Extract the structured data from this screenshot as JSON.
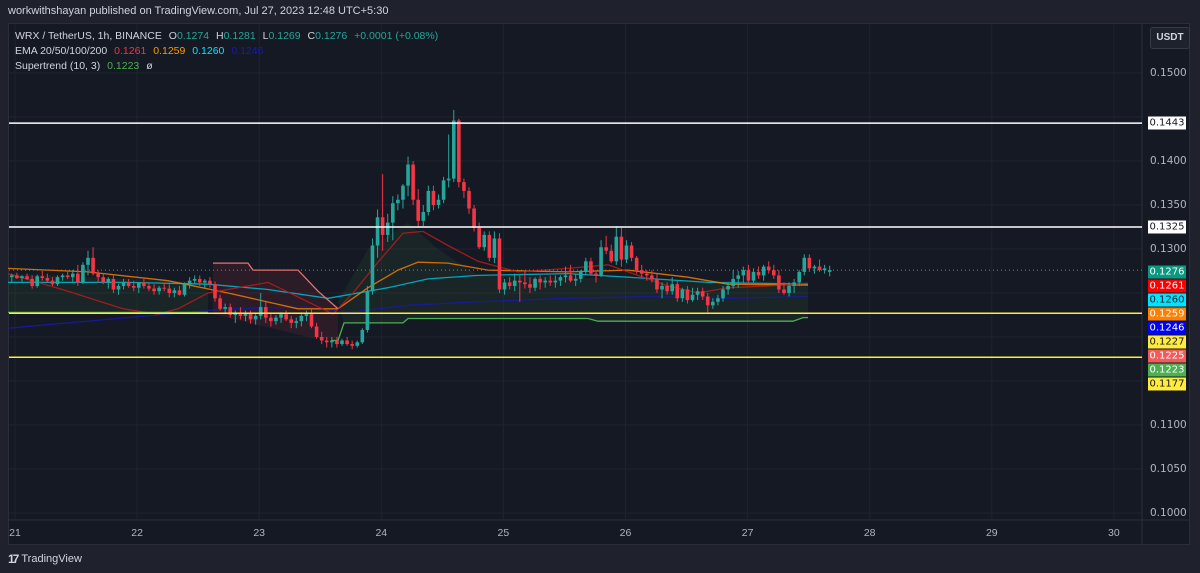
{
  "header": {
    "publisher_text": "workwithshayan published on TradingView.com, Jul 27, 2023 12:48 UTC+5:30"
  },
  "legend": {
    "symbol_line": {
      "symbol": "WRX / TetherUS, 1h, BINANCE",
      "o_label": "O",
      "o": "0.1274",
      "h_label": "H",
      "h": "0.1281",
      "l_label": "L",
      "l": "0.1269",
      "c_label": "C",
      "c": "0.1276",
      "change": "+0.0001 (+0.08%)"
    },
    "ema_line": {
      "label": "EMA 20/50/100/200",
      "v20": "0.1261",
      "v50": "0.1259",
      "v100": "0.1260",
      "v200": "0.1246"
    },
    "supertrend_line": {
      "label": "Supertrend (10, 3)",
      "value": "0.1223",
      "suffix": "ø"
    }
  },
  "currency_button": "USDT",
  "footer": {
    "brand": "TradingView",
    "mark": "17"
  },
  "colors": {
    "up": "#26a69a",
    "down": "#f23645",
    "ema20": "#b71c1c",
    "ema50": "#f57c00",
    "ema100": "#00bcd4",
    "ema200": "#1a1aa6",
    "supertrend": "#4caf50",
    "supertrend_down": "#e57373",
    "white_level": "#ffffff",
    "yellow_level": "#ffeb3b"
  },
  "chart_data": {
    "type": "candlestick",
    "title": "WRX / TetherUS, 1h, BINANCE",
    "xlabel": "",
    "ylabel": "USDT",
    "ylim": [
      0.0975,
      0.1525
    ],
    "x_ticks": [
      "21",
      "22",
      "23",
      "24",
      "25",
      "26",
      "27",
      "28",
      "29",
      "30"
    ],
    "y_ticks": [
      "0.1500",
      "0.1400",
      "0.1350",
      "0.1300",
      "0.1100",
      "0.1050",
      "0.1000"
    ],
    "horizontal_levels": [
      {
        "price": 0.1443,
        "label": "0.1443",
        "color": "#ffffff"
      },
      {
        "price": 0.1325,
        "label": "0.1325",
        "color": "#ffffff"
      },
      {
        "price": 0.1227,
        "label": "0.1227",
        "color": "#ffeb3b"
      },
      {
        "price": 0.1177,
        "label": "0.1177",
        "color": "#ffeb3b"
      }
    ],
    "price_tags": [
      {
        "label": "0.1276",
        "price": 0.1276,
        "bg": "#089981",
        "fg": "#ffffff"
      },
      {
        "label": "0.1261",
        "price": 0.1261,
        "bg": "#ff0000",
        "fg": "#ffffff"
      },
      {
        "label": "0.1260",
        "price": 0.126,
        "bg": "#00e5ff",
        "fg": "#131722"
      },
      {
        "label": "0.1259",
        "price": 0.1259,
        "bg": "#ff7f00",
        "fg": "#ffffff"
      },
      {
        "label": "0.1246",
        "price": 0.1246,
        "bg": "#0000ff",
        "fg": "#ffffff"
      },
      {
        "label": "0.1227",
        "price": 0.1227,
        "bg": "#ffeb3b",
        "fg": "#131722"
      },
      {
        "label": "0.1225",
        "price": 0.1225,
        "bg": "#f55a5a",
        "fg": "#ffffff"
      },
      {
        "label": "0.1223",
        "price": 0.1223,
        "bg": "#4caf50",
        "fg": "#ffffff"
      },
      {
        "label": "0.1177",
        "price": 0.1177,
        "bg": "#ffeb3b",
        "fg": "#131722"
      }
    ],
    "last_price": 0.1276,
    "candles_ohlc": [
      [
        0.1268,
        0.1272,
        0.1262,
        0.127
      ],
      [
        0.127,
        0.1273,
        0.1266,
        0.1267
      ],
      [
        0.1267,
        0.127,
        0.1263,
        0.1269
      ],
      [
        0.1269,
        0.1272,
        0.1265,
        0.1266
      ],
      [
        0.1266,
        0.127,
        0.1255,
        0.1258
      ],
      [
        0.1258,
        0.1271,
        0.1256,
        0.1269
      ],
      [
        0.1269,
        0.1275,
        0.1264,
        0.1267
      ],
      [
        0.1267,
        0.1272,
        0.1262,
        0.1264
      ],
      [
        0.1264,
        0.1268,
        0.1258,
        0.126
      ],
      [
        0.126,
        0.127,
        0.1258,
        0.1268
      ],
      [
        0.1268,
        0.1272,
        0.1264,
        0.127
      ],
      [
        0.127,
        0.1275,
        0.1266,
        0.1268
      ],
      [
        0.1268,
        0.1276,
        0.1262,
        0.1272
      ],
      [
        0.1272,
        0.1282,
        0.1258,
        0.1262
      ],
      [
        0.1262,
        0.1285,
        0.126,
        0.1282
      ],
      [
        0.1282,
        0.1298,
        0.127,
        0.129
      ],
      [
        0.129,
        0.1302,
        0.127,
        0.1272
      ],
      [
        0.1272,
        0.1276,
        0.1262,
        0.1268
      ],
      [
        0.1268,
        0.1272,
        0.126,
        0.1262
      ],
      [
        0.1262,
        0.1268,
        0.1255,
        0.1266
      ],
      [
        0.1266,
        0.127,
        0.125,
        0.1254
      ],
      [
        0.1254,
        0.126,
        0.1248,
        0.1258
      ],
      [
        0.1258,
        0.1266,
        0.1254,
        0.1262
      ],
      [
        0.1262,
        0.1266,
        0.1256,
        0.1258
      ],
      [
        0.1258,
        0.1264,
        0.1252,
        0.1256
      ],
      [
        0.1256,
        0.1262,
        0.125,
        0.1262
      ],
      [
        0.1262,
        0.1266,
        0.1255,
        0.1258
      ],
      [
        0.1258,
        0.1262,
        0.1252,
        0.1255
      ],
      [
        0.1255,
        0.126,
        0.1248,
        0.1252
      ],
      [
        0.1252,
        0.1258,
        0.1248,
        0.1256
      ],
      [
        0.1256,
        0.1262,
        0.1252,
        0.1255
      ],
      [
        0.1255,
        0.126,
        0.1245,
        0.125
      ],
      [
        0.125,
        0.1256,
        0.1245,
        0.1253
      ],
      [
        0.1253,
        0.1258,
        0.1247,
        0.1248
      ],
      [
        0.1248,
        0.1262,
        0.1246,
        0.126
      ],
      [
        0.126,
        0.1268,
        0.1255,
        0.1264
      ],
      [
        0.1264,
        0.127,
        0.126,
        0.1266
      ],
      [
        0.1266,
        0.127,
        0.1258,
        0.1262
      ],
      [
        0.1262,
        0.1266,
        0.1256,
        0.1264
      ],
      [
        0.1264,
        0.1268,
        0.1256,
        0.126
      ],
      [
        0.126,
        0.1263,
        0.124,
        0.1244
      ],
      [
        0.1244,
        0.1248,
        0.123,
        0.1232
      ],
      [
        0.1232,
        0.1238,
        0.1226,
        0.1234
      ],
      [
        0.1234,
        0.1238,
        0.1222,
        0.1225
      ],
      [
        0.1225,
        0.123,
        0.1216,
        0.1228
      ],
      [
        0.1228,
        0.1234,
        0.122,
        0.1224
      ],
      [
        0.1224,
        0.123,
        0.1218,
        0.1227
      ],
      [
        0.1227,
        0.123,
        0.1215,
        0.122
      ],
      [
        0.122,
        0.1226,
        0.1214,
        0.1224
      ],
      [
        0.1224,
        0.125,
        0.122,
        0.1234
      ],
      [
        0.1234,
        0.124,
        0.1216,
        0.1222
      ],
      [
        0.1222,
        0.1226,
        0.1212,
        0.1218
      ],
      [
        0.1218,
        0.1225,
        0.1214,
        0.1222
      ],
      [
        0.1222,
        0.1228,
        0.1216,
        0.1226
      ],
      [
        0.1226,
        0.123,
        0.1218,
        0.122
      ],
      [
        0.122,
        0.1224,
        0.121,
        0.1216
      ],
      [
        0.1216,
        0.1222,
        0.121,
        0.1218
      ],
      [
        0.1218,
        0.1228,
        0.1212,
        0.1224
      ],
      [
        0.1224,
        0.123,
        0.1218,
        0.1226
      ],
      [
        0.1226,
        0.1232,
        0.121,
        0.1212
      ],
      [
        0.1212,
        0.1216,
        0.1198,
        0.12
      ],
      [
        0.12,
        0.1206,
        0.1192,
        0.1196
      ],
      [
        0.1196,
        0.12,
        0.1188,
        0.1194
      ],
      [
        0.1194,
        0.12,
        0.1188,
        0.1196
      ],
      [
        0.1196,
        0.12,
        0.1188,
        0.1192
      ],
      [
        0.1192,
        0.1198,
        0.119,
        0.1196
      ],
      [
        0.1196,
        0.12,
        0.119,
        0.1192
      ],
      [
        0.1192,
        0.1196,
        0.1186,
        0.119
      ],
      [
        0.119,
        0.1196,
        0.1188,
        0.1194
      ],
      [
        0.1194,
        0.121,
        0.1192,
        0.1208
      ],
      [
        0.1208,
        0.1258,
        0.1205,
        0.1252
      ],
      [
        0.1252,
        0.1312,
        0.1248,
        0.1304
      ],
      [
        0.1304,
        0.1345,
        0.129,
        0.1336
      ],
      [
        0.1336,
        0.1385,
        0.1298,
        0.1316
      ],
      [
        0.1316,
        0.134,
        0.1308,
        0.133
      ],
      [
        0.133,
        0.136,
        0.131,
        0.1352
      ],
      [
        0.1352,
        0.1362,
        0.1344,
        0.1356
      ],
      [
        0.1356,
        0.1374,
        0.1346,
        0.1372
      ],
      [
        0.1372,
        0.1405,
        0.136,
        0.1396
      ],
      [
        0.1396,
        0.14,
        0.135,
        0.1356
      ],
      [
        0.1356,
        0.1368,
        0.1324,
        0.1332
      ],
      [
        0.1332,
        0.135,
        0.1326,
        0.1342
      ],
      [
        0.1342,
        0.1372,
        0.1338,
        0.1366
      ],
      [
        0.1366,
        0.1372,
        0.1344,
        0.135
      ],
      [
        0.135,
        0.1362,
        0.1346,
        0.1356
      ],
      [
        0.1356,
        0.1382,
        0.1352,
        0.1378
      ],
      [
        0.1378,
        0.143,
        0.137,
        0.138
      ],
      [
        0.138,
        0.1458,
        0.1376,
        0.1446
      ],
      [
        0.1446,
        0.1448,
        0.137,
        0.1376
      ],
      [
        0.1376,
        0.138,
        0.1358,
        0.1366
      ],
      [
        0.1366,
        0.137,
        0.134,
        0.1346
      ],
      [
        0.1346,
        0.135,
        0.132,
        0.1324
      ],
      [
        0.1324,
        0.133,
        0.13,
        0.1302
      ],
      [
        0.1302,
        0.132,
        0.1298,
        0.1316
      ],
      [
        0.1316,
        0.132,
        0.1286,
        0.129
      ],
      [
        0.129,
        0.132,
        0.1284,
        0.1312
      ],
      [
        0.1312,
        0.1318,
        0.125,
        0.1254
      ],
      [
        0.1254,
        0.1266,
        0.1248,
        0.1262
      ],
      [
        0.1262,
        0.1268,
        0.1254,
        0.1258
      ],
      [
        0.1258,
        0.1272,
        0.1252,
        0.1264
      ],
      [
        0.1264,
        0.127,
        0.124,
        0.1262
      ],
      [
        0.1262,
        0.1275,
        0.1255,
        0.126
      ],
      [
        0.126,
        0.1268,
        0.125,
        0.1256
      ],
      [
        0.1256,
        0.1268,
        0.1252,
        0.1266
      ],
      [
        0.1266,
        0.127,
        0.1254,
        0.1262
      ],
      [
        0.1262,
        0.1268,
        0.1256,
        0.1264
      ],
      [
        0.1264,
        0.127,
        0.1258,
        0.1262
      ],
      [
        0.1262,
        0.127,
        0.1256,
        0.1264
      ],
      [
        0.1264,
        0.127,
        0.1258,
        0.1268
      ],
      [
        0.1268,
        0.128,
        0.1262,
        0.127
      ],
      [
        0.127,
        0.1282,
        0.1262,
        0.1264
      ],
      [
        0.1264,
        0.1272,
        0.1258,
        0.1266
      ],
      [
        0.1266,
        0.1276,
        0.1262,
        0.1274
      ],
      [
        0.1274,
        0.129,
        0.127,
        0.1286
      ],
      [
        0.1286,
        0.129,
        0.127,
        0.1272
      ],
      [
        0.1272,
        0.1276,
        0.1262,
        0.127
      ],
      [
        0.127,
        0.131,
        0.1268,
        0.1302
      ],
      [
        0.1302,
        0.1315,
        0.1294,
        0.1298
      ],
      [
        0.1298,
        0.1305,
        0.1284,
        0.1286
      ],
      [
        0.1286,
        0.1326,
        0.1282,
        0.1314
      ],
      [
        0.1314,
        0.1324,
        0.128,
        0.1288
      ],
      [
        0.1288,
        0.131,
        0.1284,
        0.1304
      ],
      [
        0.1304,
        0.1308,
        0.1286,
        0.129
      ],
      [
        0.129,
        0.1292,
        0.1272,
        0.1276
      ],
      [
        0.1276,
        0.1282,
        0.1268,
        0.1272
      ],
      [
        0.1272,
        0.1276,
        0.1264,
        0.127
      ],
      [
        0.127,
        0.1276,
        0.1262,
        0.1266
      ],
      [
        0.1266,
        0.1272,
        0.125,
        0.1254
      ],
      [
        0.1254,
        0.1262,
        0.1244,
        0.1258
      ],
      [
        0.1258,
        0.1262,
        0.1248,
        0.1252
      ],
      [
        0.1252,
        0.1268,
        0.1248,
        0.126
      ],
      [
        0.126,
        0.1264,
        0.124,
        0.1244
      ],
      [
        0.1244,
        0.1256,
        0.124,
        0.1254
      ],
      [
        0.1254,
        0.1258,
        0.1238,
        0.1242
      ],
      [
        0.1242,
        0.1256,
        0.124,
        0.1248
      ],
      [
        0.1248,
        0.1256,
        0.1242,
        0.1252
      ],
      [
        0.1252,
        0.1256,
        0.1242,
        0.1246
      ],
      [
        0.1246,
        0.125,
        0.1228,
        0.1236
      ],
      [
        0.1236,
        0.1244,
        0.1232,
        0.124
      ],
      [
        0.124,
        0.1248,
        0.1236,
        0.1244
      ],
      [
        0.1244,
        0.1258,
        0.124,
        0.1254
      ],
      [
        0.1254,
        0.1262,
        0.1248,
        0.1258
      ],
      [
        0.1258,
        0.1276,
        0.1255,
        0.1266
      ],
      [
        0.1266,
        0.1275,
        0.1256,
        0.127
      ],
      [
        0.127,
        0.128,
        0.1262,
        0.1276
      ],
      [
        0.1276,
        0.1282,
        0.1262,
        0.1264
      ],
      [
        0.1264,
        0.1278,
        0.1262,
        0.1274
      ],
      [
        0.1274,
        0.128,
        0.1266,
        0.127
      ],
      [
        0.127,
        0.1282,
        0.1264,
        0.128
      ],
      [
        0.128,
        0.1286,
        0.1272,
        0.1276
      ],
      [
        0.1276,
        0.1282,
        0.1266,
        0.127
      ],
      [
        0.127,
        0.1276,
        0.125,
        0.1254
      ],
      [
        0.1254,
        0.1262,
        0.1248,
        0.125
      ],
      [
        0.125,
        0.1262,
        0.1246,
        0.1258
      ],
      [
        0.1258,
        0.1266,
        0.125,
        0.1262
      ],
      [
        0.1262,
        0.1276,
        0.1258,
        0.1274
      ],
      [
        0.1274,
        0.1294,
        0.127,
        0.129
      ],
      [
        0.129,
        0.1294,
        0.1274,
        0.1278
      ],
      [
        0.1278,
        0.1282,
        0.1272,
        0.128
      ],
      [
        0.128,
        0.1288,
        0.1274,
        0.1276
      ],
      [
        0.1276,
        0.1282,
        0.1272,
        0.1278
      ],
      [
        0.1274,
        0.1281,
        0.1269,
        0.1276
      ]
    ],
    "ema20": [
      [
        0,
        0.1272
      ],
      [
        60,
        0.1252
      ],
      [
        115,
        0.1232
      ],
      [
        150,
        0.1226
      ],
      [
        170,
        0.1232
      ],
      [
        200,
        0.125
      ],
      [
        260,
        0.1262
      ],
      [
        300,
        0.124
      ],
      [
        325,
        0.1226
      ],
      [
        345,
        0.125
      ],
      [
        370,
        0.1285
      ],
      [
        395,
        0.1318
      ],
      [
        415,
        0.132
      ],
      [
        440,
        0.1304
      ],
      [
        470,
        0.1286
      ],
      [
        510,
        0.1274
      ],
      [
        560,
        0.1278
      ],
      [
        600,
        0.1282
      ],
      [
        630,
        0.127
      ],
      [
        660,
        0.1258
      ],
      [
        690,
        0.125
      ],
      [
        720,
        0.1256
      ],
      [
        760,
        0.1258
      ],
      [
        800,
        0.1261
      ]
    ],
    "ema50": [
      [
        0,
        0.1278
      ],
      [
        80,
        0.1274
      ],
      [
        160,
        0.1264
      ],
      [
        220,
        0.125
      ],
      [
        290,
        0.1232
      ],
      [
        330,
        0.1232
      ],
      [
        360,
        0.1256
      ],
      [
        390,
        0.1276
      ],
      [
        410,
        0.1285
      ],
      [
        440,
        0.1284
      ],
      [
        480,
        0.1276
      ],
      [
        560,
        0.1274
      ],
      [
        620,
        0.1276
      ],
      [
        680,
        0.1268
      ],
      [
        720,
        0.126
      ],
      [
        800,
        0.1259
      ]
    ],
    "ema100": [
      [
        0,
        0.1262
      ],
      [
        120,
        0.1262
      ],
      [
        200,
        0.126
      ],
      [
        260,
        0.1254
      ],
      [
        320,
        0.1244
      ],
      [
        340,
        0.1248
      ],
      [
        380,
        0.1256
      ],
      [
        420,
        0.1266
      ],
      [
        470,
        0.127
      ],
      [
        560,
        0.1272
      ],
      [
        620,
        0.1268
      ],
      [
        700,
        0.1262
      ],
      [
        800,
        0.126
      ]
    ],
    "ema200": [
      [
        0,
        0.121
      ],
      [
        120,
        0.1222
      ],
      [
        220,
        0.1232
      ],
      [
        300,
        0.1234
      ],
      [
        340,
        0.1228
      ],
      [
        400,
        0.1236
      ],
      [
        470,
        0.124
      ],
      [
        560,
        0.1244
      ],
      [
        640,
        0.1246
      ],
      [
        720,
        0.1244
      ],
      [
        800,
        0.1246
      ]
    ],
    "supertrend_up_1": [
      [
        0,
        0.1228
      ],
      [
        200,
        0.1228
      ]
    ],
    "supertrend_down": [
      [
        205,
        0.1284
      ],
      [
        240,
        0.1284
      ],
      [
        245,
        0.1276
      ],
      [
        290,
        0.1276
      ],
      [
        310,
        0.1252
      ],
      [
        330,
        0.1232
      ]
    ],
    "supertrend_up_2": [
      [
        323,
        0.1196
      ],
      [
        330,
        0.1196
      ],
      [
        336,
        0.1216
      ],
      [
        395,
        0.1216
      ],
      [
        400,
        0.1221
      ],
      [
        580,
        0.1221
      ],
      [
        590,
        0.1218
      ],
      [
        785,
        0.1218
      ],
      [
        795,
        0.1222
      ],
      [
        800,
        0.1222
      ]
    ]
  }
}
